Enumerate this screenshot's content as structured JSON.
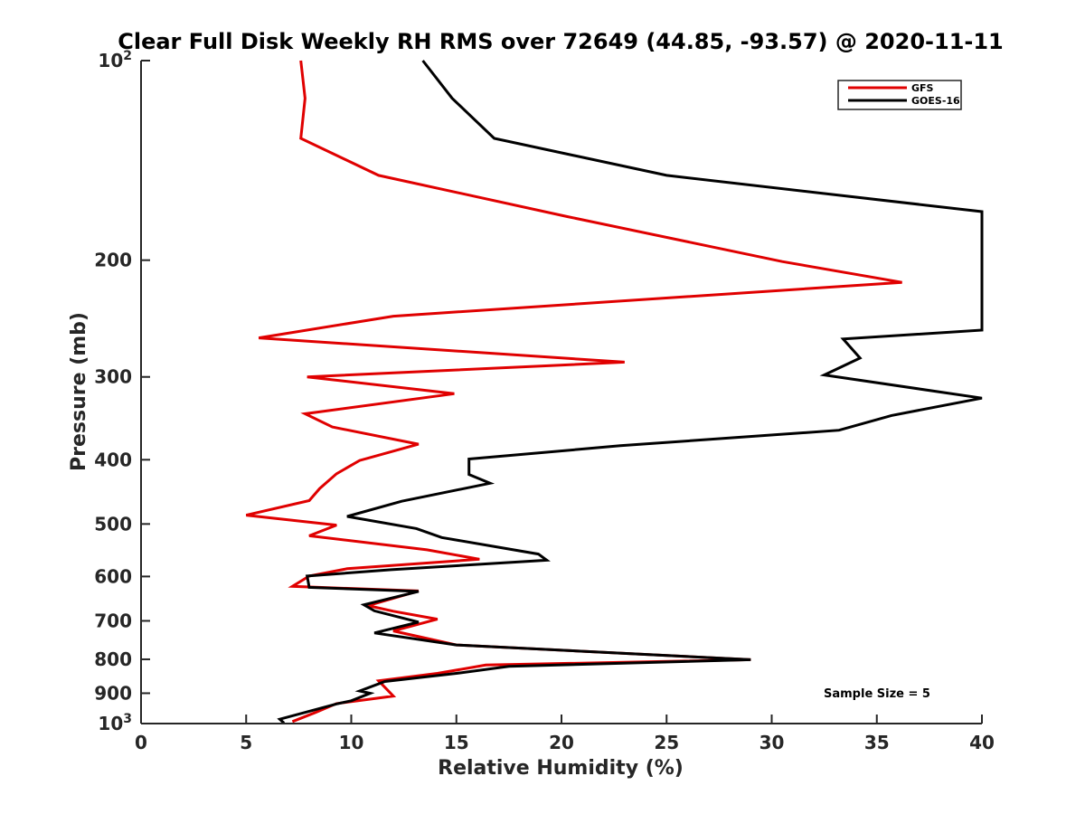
{
  "chart_data": {
    "type": "line",
    "title": "Clear Full Disk Weekly RH RMS over 72649 (44.85, -93.57) @ 2020-11-11",
    "xlabel": "Relative Humidity (%)",
    "ylabel": "Pressure (mb)",
    "xlim": [
      0,
      40
    ],
    "ylim": [
      100,
      1000
    ],
    "y_scale": "log",
    "y_reversed": true,
    "x_ticks": [
      "0",
      "5",
      "10",
      "15",
      "20",
      "25",
      "30",
      "35",
      "40"
    ],
    "y_ticks": [
      {
        "value": 100,
        "label": "10",
        "exp": "2"
      },
      {
        "value": 200,
        "label": "200"
      },
      {
        "value": 300,
        "label": "300"
      },
      {
        "value": 400,
        "label": "400"
      },
      {
        "value": 500,
        "label": "500"
      },
      {
        "value": 600,
        "label": "600"
      },
      {
        "value": 700,
        "label": "700"
      },
      {
        "value": 800,
        "label": "800"
      },
      {
        "value": 900,
        "label": "900"
      },
      {
        "value": 1000,
        "label": "10",
        "exp": "3"
      }
    ],
    "legend_position": "top-right",
    "annotation": "Sample Size = 5",
    "series": [
      {
        "name": "GFS",
        "color": "#e00000",
        "points": [
          [
            7.6,
            100
          ],
          [
            7.8,
            114
          ],
          [
            7.6,
            131
          ],
          [
            11.3,
            149
          ],
          [
            20.3,
            172
          ],
          [
            30.5,
            201
          ],
          [
            36.2,
            216
          ],
          [
            12.0,
            243
          ],
          [
            5.6,
            262
          ],
          [
            23.0,
            285
          ],
          [
            7.9,
            300
          ],
          [
            14.9,
            318
          ],
          [
            7.8,
            341
          ],
          [
            9.1,
            357
          ],
          [
            13.2,
            379
          ],
          [
            10.4,
            401
          ],
          [
            9.3,
            420
          ],
          [
            8.5,
            442
          ],
          [
            8.0,
            461
          ],
          [
            5.0,
            485
          ],
          [
            9.3,
            502
          ],
          [
            8.0,
            521
          ],
          [
            13.6,
            547
          ],
          [
            16.1,
            565
          ],
          [
            9.8,
            584
          ],
          [
            8.0,
            599
          ],
          [
            7.2,
            621
          ],
          [
            13.2,
            631
          ],
          [
            10.8,
            664
          ],
          [
            12.0,
            677
          ],
          [
            14.1,
            696
          ],
          [
            12.0,
            725
          ],
          [
            15.0,
            761
          ],
          [
            29.0,
            801
          ],
          [
            16.4,
            816
          ],
          [
            14.1,
            840
          ],
          [
            11.3,
            862
          ],
          [
            12.0,
            909
          ],
          [
            9.3,
            933
          ],
          [
            8.3,
            962
          ],
          [
            7.2,
            993
          ]
        ]
      },
      {
        "name": "GOES-16",
        "color": "#000000",
        "points": [
          [
            13.4,
            100
          ],
          [
            14.8,
            114
          ],
          [
            16.8,
            131
          ],
          [
            25.0,
            149
          ],
          [
            40.0,
            169
          ],
          [
            40.0,
            255
          ],
          [
            33.4,
            263
          ],
          [
            34.2,
            281
          ],
          [
            32.5,
            298
          ],
          [
            40.0,
            323
          ],
          [
            35.7,
            343
          ],
          [
            33.2,
            361
          ],
          [
            22.8,
            381
          ],
          [
            15.6,
            399
          ],
          [
            15.6,
            421
          ],
          [
            16.6,
            434
          ],
          [
            12.4,
            462
          ],
          [
            9.8,
            487
          ],
          [
            13.1,
            508
          ],
          [
            14.3,
            524
          ],
          [
            18.9,
            555
          ],
          [
            19.3,
            567
          ],
          [
            11.9,
            586
          ],
          [
            7.9,
            599
          ],
          [
            8.0,
            623
          ],
          [
            13.2,
            632
          ],
          [
            10.6,
            662
          ],
          [
            11.1,
            676
          ],
          [
            13.2,
            703
          ],
          [
            11.1,
            730
          ],
          [
            15.0,
            761
          ],
          [
            29.0,
            801
          ],
          [
            17.5,
            820
          ],
          [
            15.0,
            840
          ],
          [
            11.6,
            864
          ],
          [
            10.4,
            893
          ],
          [
            10.9,
            900
          ],
          [
            10.0,
            924
          ],
          [
            9.3,
            934
          ],
          [
            6.6,
            985
          ],
          [
            6.8,
            998
          ]
        ]
      }
    ]
  }
}
